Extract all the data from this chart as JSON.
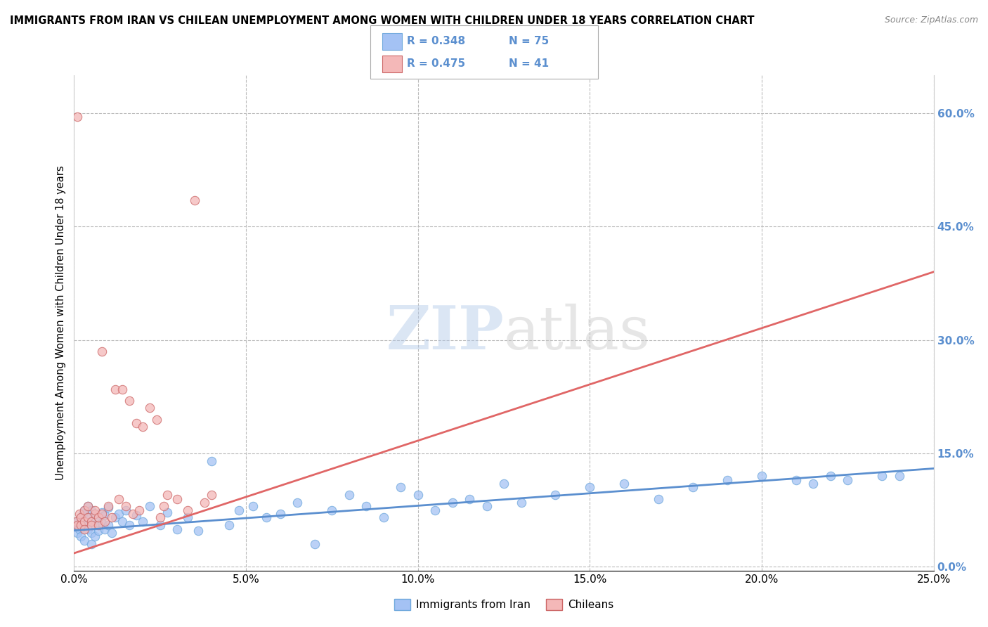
{
  "title": "IMMIGRANTS FROM IRAN VS CHILEAN UNEMPLOYMENT AMONG WOMEN WITH CHILDREN UNDER 18 YEARS CORRELATION CHART",
  "source": "Source: ZipAtlas.com",
  "ylabel": "Unemployment Among Women with Children Under 18 years",
  "xlim": [
    0.0,
    0.25
  ],
  "ylim": [
    -0.005,
    0.65
  ],
  "xticks": [
    0.0,
    0.05,
    0.1,
    0.15,
    0.2,
    0.25
  ],
  "xticklabels": [
    "0.0%",
    "5.0%",
    "10.0%",
    "15.0%",
    "20.0%",
    "25.0%"
  ],
  "yticks_right": [
    0.0,
    0.15,
    0.3,
    0.45,
    0.6
  ],
  "blue_scatter_color": "#a4c2f4",
  "blue_edge_color": "#6fa8dc",
  "pink_scatter_color": "#f4b8b8",
  "pink_edge_color": "#cc6666",
  "trend_blue_color": "#5b8fcf",
  "trend_pink_color": "#e06666",
  "R_blue": 0.348,
  "N_blue": 75,
  "R_pink": 0.475,
  "N_pink": 41,
  "watermark_zip": "ZIP",
  "watermark_atlas": "atlas",
  "background_color": "#ffffff",
  "grid_color": "#bbbbbb",
  "legend_label_blue": "Immigrants from Iran",
  "legend_label_pink": "Chileans",
  "blue_scatter_x": [
    0.0005,
    0.001,
    0.001,
    0.0015,
    0.002,
    0.002,
    0.0025,
    0.003,
    0.003,
    0.003,
    0.004,
    0.004,
    0.004,
    0.005,
    0.005,
    0.005,
    0.005,
    0.006,
    0.006,
    0.006,
    0.007,
    0.007,
    0.008,
    0.008,
    0.009,
    0.009,
    0.01,
    0.01,
    0.011,
    0.012,
    0.013,
    0.014,
    0.015,
    0.016,
    0.018,
    0.02,
    0.022,
    0.025,
    0.027,
    0.03,
    0.033,
    0.036,
    0.04,
    0.045,
    0.048,
    0.052,
    0.056,
    0.06,
    0.065,
    0.07,
    0.075,
    0.08,
    0.085,
    0.09,
    0.095,
    0.1,
    0.105,
    0.11,
    0.115,
    0.12,
    0.125,
    0.13,
    0.14,
    0.15,
    0.16,
    0.17,
    0.18,
    0.19,
    0.2,
    0.21,
    0.215,
    0.22,
    0.225,
    0.235,
    0.24
  ],
  "blue_scatter_y": [
    0.055,
    0.06,
    0.045,
    0.05,
    0.065,
    0.04,
    0.07,
    0.055,
    0.075,
    0.035,
    0.05,
    0.065,
    0.08,
    0.045,
    0.06,
    0.075,
    0.03,
    0.055,
    0.07,
    0.04,
    0.065,
    0.048,
    0.058,
    0.072,
    0.05,
    0.068,
    0.055,
    0.078,
    0.045,
    0.065,
    0.07,
    0.06,
    0.075,
    0.055,
    0.068,
    0.06,
    0.08,
    0.055,
    0.072,
    0.05,
    0.065,
    0.048,
    0.14,
    0.055,
    0.075,
    0.08,
    0.065,
    0.07,
    0.085,
    0.03,
    0.075,
    0.095,
    0.08,
    0.065,
    0.105,
    0.095,
    0.075,
    0.085,
    0.09,
    0.08,
    0.11,
    0.085,
    0.095,
    0.105,
    0.11,
    0.09,
    0.105,
    0.115,
    0.12,
    0.115,
    0.11,
    0.12,
    0.115,
    0.12,
    0.12
  ],
  "pink_scatter_x": [
    0.0005,
    0.001,
    0.001,
    0.0015,
    0.002,
    0.002,
    0.003,
    0.003,
    0.003,
    0.004,
    0.004,
    0.005,
    0.005,
    0.006,
    0.006,
    0.007,
    0.007,
    0.008,
    0.008,
    0.009,
    0.01,
    0.011,
    0.012,
    0.013,
    0.014,
    0.015,
    0.016,
    0.017,
    0.018,
    0.019,
    0.02,
    0.022,
    0.024,
    0.025,
    0.026,
    0.027,
    0.03,
    0.033,
    0.035,
    0.038,
    0.04
  ],
  "pink_scatter_y": [
    0.06,
    0.595,
    0.055,
    0.07,
    0.065,
    0.055,
    0.075,
    0.06,
    0.05,
    0.065,
    0.08,
    0.06,
    0.055,
    0.07,
    0.075,
    0.055,
    0.065,
    0.285,
    0.07,
    0.06,
    0.08,
    0.065,
    0.235,
    0.09,
    0.235,
    0.08,
    0.22,
    0.07,
    0.19,
    0.075,
    0.185,
    0.21,
    0.195,
    0.065,
    0.08,
    0.095,
    0.09,
    0.075,
    0.485,
    0.085,
    0.095
  ],
  "blue_trend_x": [
    0.0,
    0.25
  ],
  "blue_trend_y": [
    0.048,
    0.13
  ],
  "pink_trend_x": [
    0.0,
    0.25
  ],
  "pink_trend_y": [
    0.018,
    0.39
  ]
}
